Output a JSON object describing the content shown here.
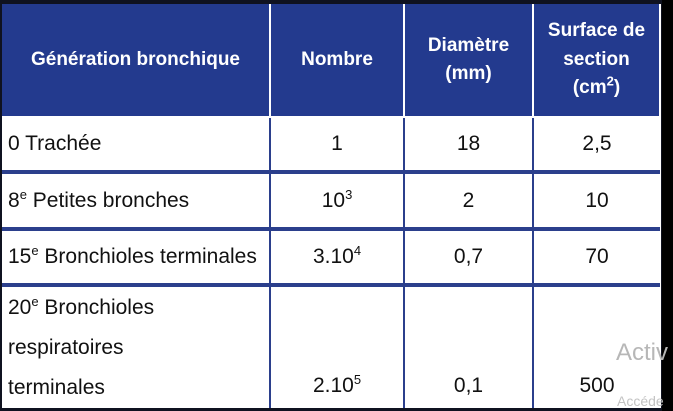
{
  "table": {
    "headers": {
      "generation": "Génération bronchique",
      "nombre": "Nombre",
      "diametre": "Diamètre (mm)",
      "surface_line1": "Surface de",
      "surface_line2_pre": "section (cm",
      "surface_sup": "2",
      "surface_line2_post": ")"
    },
    "rows": [
      {
        "gen_sup": "",
        "gen_text": "0 Trachée",
        "nombre_base": "1",
        "nombre_sup": "",
        "diametre": "18",
        "surface": "2,5"
      },
      {
        "gen_num": "8",
        "gen_sup": "e",
        "gen_text": " Petites bronches",
        "nombre_base": "10",
        "nombre_sup": "3",
        "diametre": "2",
        "surface": "10"
      },
      {
        "gen_num": "15",
        "gen_sup": "e",
        "gen_text": " Bronchioles terminales",
        "nombre_base": "3.10",
        "nombre_sup": "4",
        "diametre": "0,7",
        "surface": "70"
      },
      {
        "gen_num": "20",
        "gen_sup": "e",
        "gen_text": " Bronchioles respiratoires",
        "gen_text2": "terminales",
        "nombre_base": "2.10",
        "nombre_sup": "5",
        "diametre": "0,1",
        "surface": "500"
      }
    ]
  },
  "watermark": {
    "line1": "Activ",
    "line2": "Accéde"
  }
}
